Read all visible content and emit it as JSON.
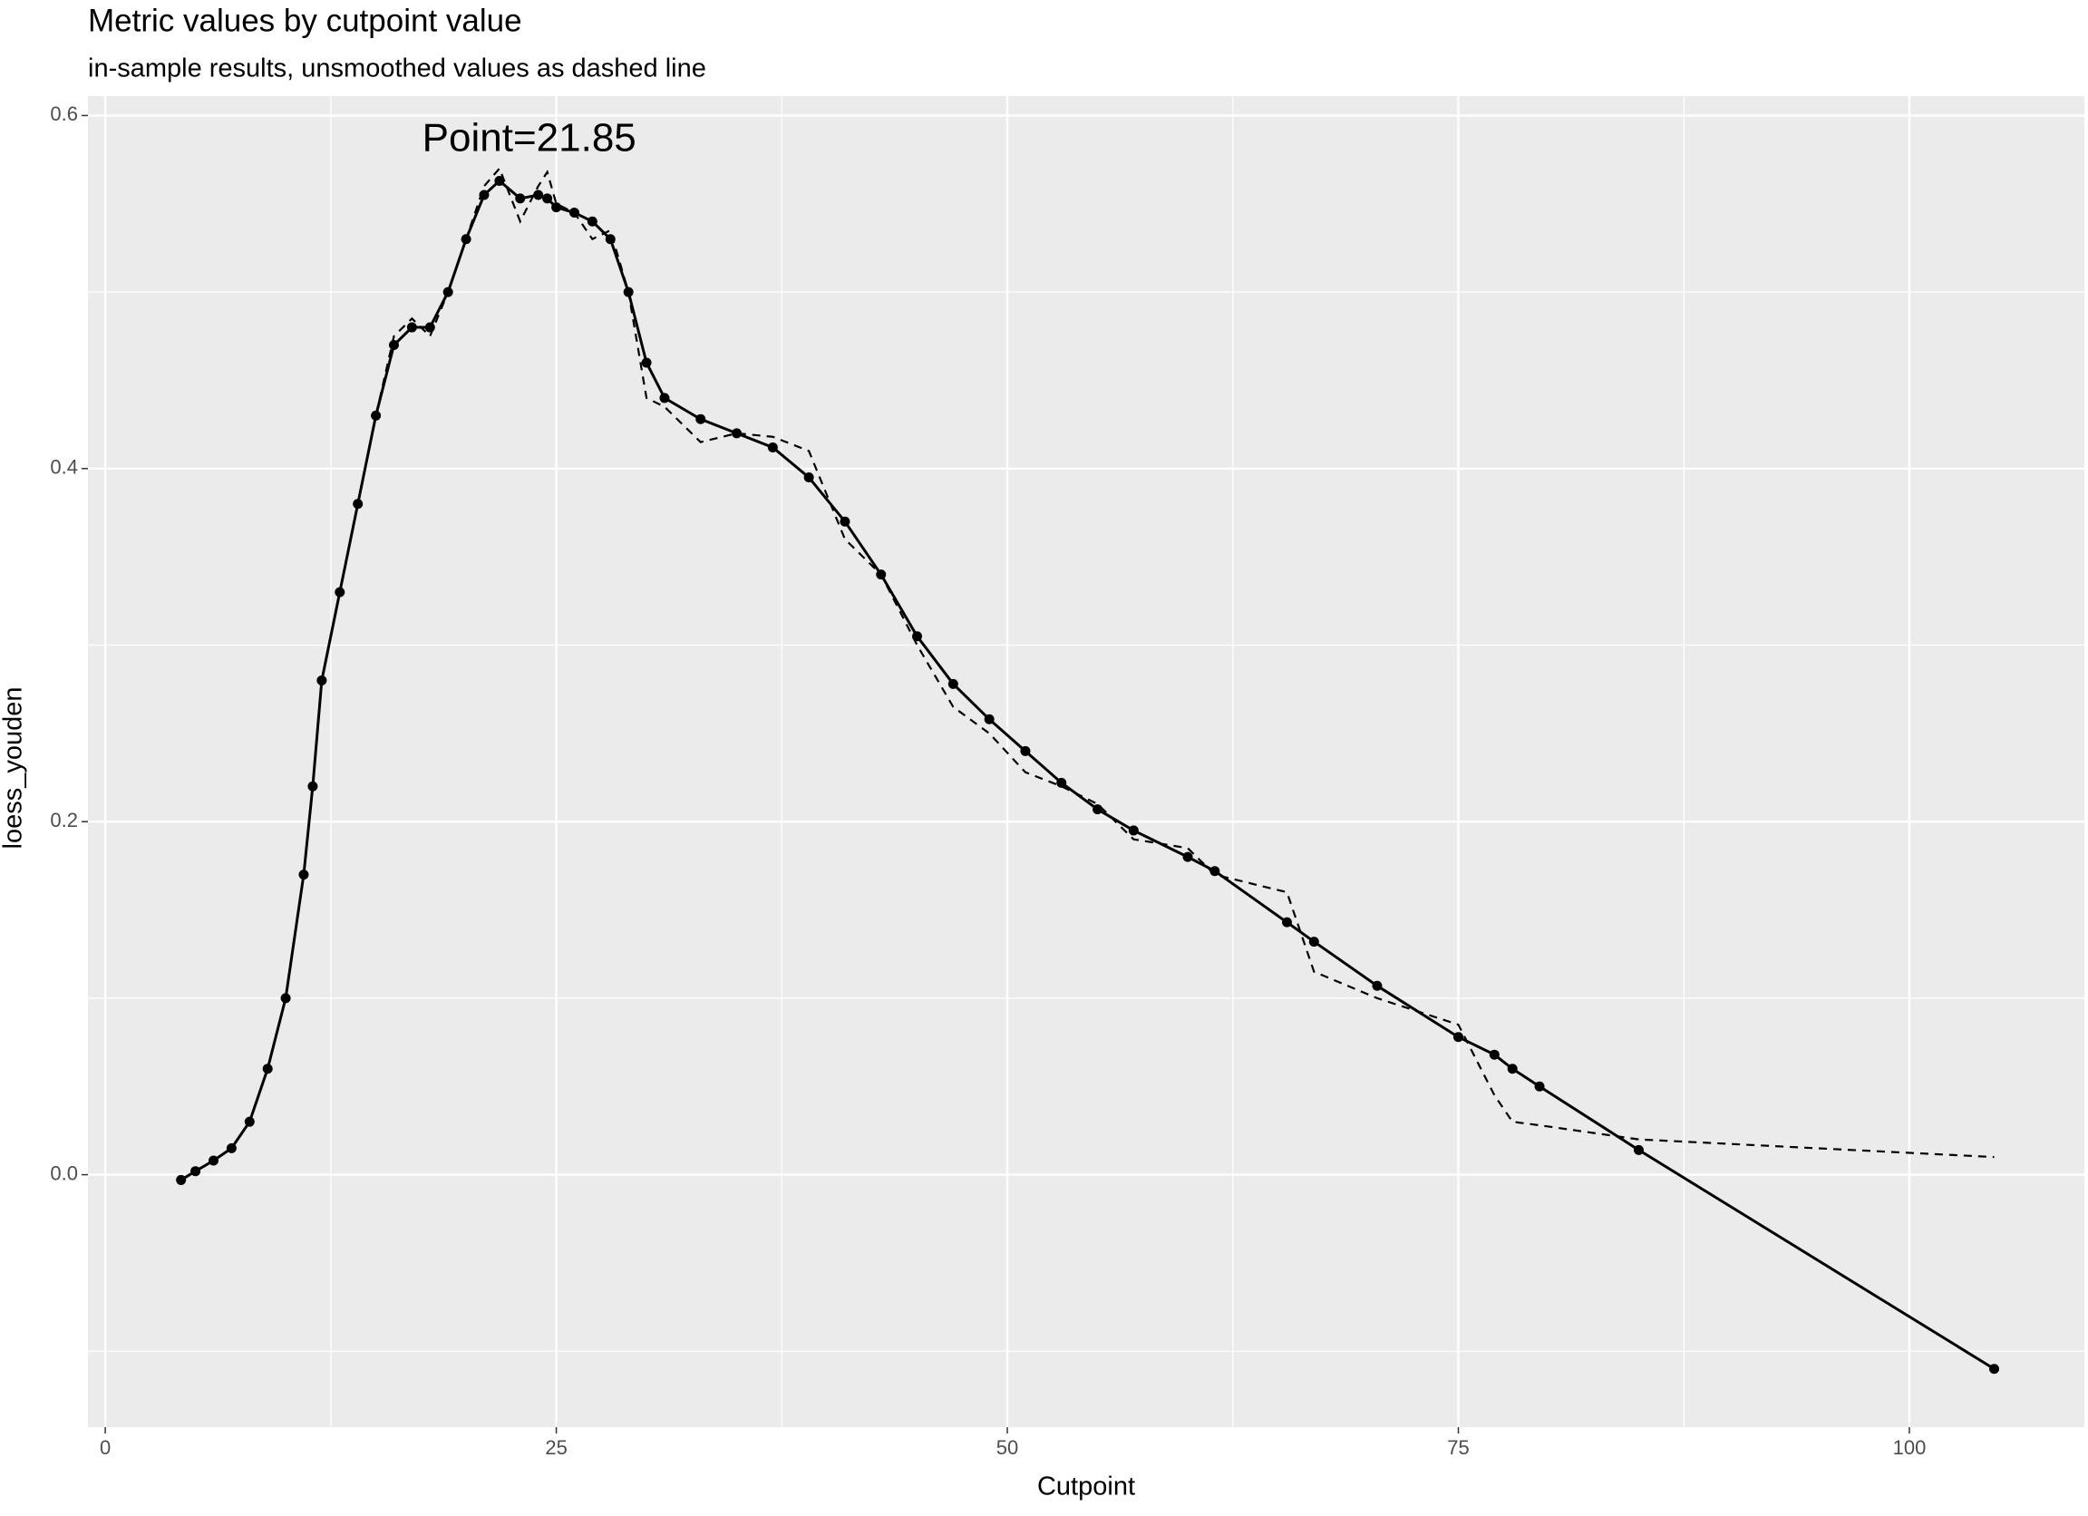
{
  "chart_data": {
    "type": "line",
    "title": "Metric values by cutpoint value",
    "subtitle": "in-sample results, unsmoothed values as dashed line",
    "x_label": "Cutpoint",
    "y_label": "loess_youden",
    "x": [
      4.2,
      5,
      6,
      7,
      8,
      9,
      10,
      11,
      11.5,
      12,
      13,
      14,
      15,
      16,
      17,
      18,
      19,
      20,
      21,
      21.85,
      23,
      24,
      24.5,
      25,
      26,
      27,
      28,
      29,
      30,
      31,
      33,
      35,
      37,
      39,
      41,
      43,
      45,
      47,
      49,
      51,
      53,
      55,
      57,
      60,
      61.5,
      65.5,
      67,
      70.5,
      75,
      77,
      78,
      79.5,
      85,
      104.7
    ],
    "series": [
      {
        "color": "#000000",
        "style": "solid",
        "markers": true,
        "values": [
          -0.003,
          0.002,
          0.008,
          0.015,
          0.03,
          0.06,
          0.1,
          0.17,
          0.22,
          0.28,
          0.33,
          0.38,
          0.43,
          0.47,
          0.48,
          0.48,
          0.5,
          0.53,
          0.555,
          0.563,
          0.553,
          0.555,
          0.553,
          0.548,
          0.545,
          0.54,
          0.53,
          0.5,
          0.46,
          0.44,
          0.428,
          0.42,
          0.412,
          0.395,
          0.37,
          0.34,
          0.305,
          0.278,
          0.258,
          0.24,
          0.222,
          0.207,
          0.195,
          0.18,
          0.172,
          0.143,
          0.132,
          0.107,
          0.078,
          0.068,
          0.06,
          0.05,
          0.014,
          -0.11
        ]
      },
      {
        "color": "#000000",
        "style": "dashed",
        "markers": false,
        "values": [
          -0.003,
          0.002,
          0.008,
          0.015,
          0.03,
          0.06,
          0.1,
          0.17,
          0.22,
          0.28,
          0.33,
          0.38,
          0.43,
          0.475,
          0.485,
          0.475,
          0.5,
          0.53,
          0.56,
          0.57,
          0.54,
          0.56,
          0.568,
          0.55,
          0.545,
          0.53,
          0.535,
          0.5,
          0.44,
          0.435,
          0.415,
          0.42,
          0.418,
          0.41,
          0.36,
          0.34,
          0.3,
          0.265,
          0.25,
          0.228,
          0.22,
          0.21,
          0.19,
          0.185,
          0.17,
          0.16,
          0.115,
          0.1,
          0.085,
          0.045,
          0.03,
          0.028,
          0.02,
          0.01
        ]
      }
    ],
    "annotation": {
      "text": "Point=21.85",
      "x": 23.5,
      "y": 0.586
    },
    "xlim": [
      -0.96,
      109.7
    ],
    "ylim": [
      -0.143,
      0.611
    ],
    "xticks": [
      0,
      25,
      50,
      75,
      100
    ],
    "yticks": [
      {
        "value": 0,
        "label": "0.0"
      },
      0.2,
      0.4,
      0.6
    ],
    "grid": true,
    "minor_grid": true,
    "panel_color": "#ebebeb"
  }
}
